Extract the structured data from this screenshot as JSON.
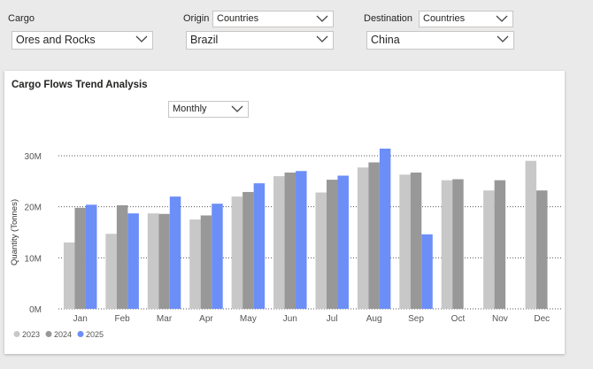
{
  "filters": {
    "cargo": {
      "label": "Cargo",
      "value": "Ores and Rocks"
    },
    "origin": {
      "label": "Origin",
      "scope": "Countries",
      "value": "Brazil"
    },
    "destination": {
      "label": "Destination",
      "scope": "Countries",
      "value": "China"
    }
  },
  "card": {
    "granularity": "Monthly"
  },
  "colors": {
    "2023": "#c8c8c8",
    "2024": "#989898",
    "2025": "#6c8ef7"
  },
  "chart_data": {
    "type": "bar",
    "title": "Cargo Flows Trend Analysis",
    "xlabel": "",
    "ylabel": "Quantity (Tonnes)",
    "ylim": [
      0,
      30000000
    ],
    "yticks": [
      {
        "value": 0,
        "label": "0M"
      },
      {
        "value": 10000000,
        "label": "10M"
      },
      {
        "value": 20000000,
        "label": "20M"
      },
      {
        "value": 30000000,
        "label": "30M"
      }
    ],
    "grid": true,
    "legend": "bottom-left",
    "categories": [
      "Jan",
      "Feb",
      "Mar",
      "Apr",
      "May",
      "Jun",
      "Jul",
      "Aug",
      "Sep",
      "Oct",
      "Nov",
      "Dec"
    ],
    "series": [
      {
        "name": "2023",
        "values": [
          13000000,
          14700000,
          18700000,
          17500000,
          22000000,
          26000000,
          22800000,
          27700000,
          26300000,
          25200000,
          23200000,
          29000000
        ]
      },
      {
        "name": "2024",
        "values": [
          19800000,
          20300000,
          18600000,
          18300000,
          22900000,
          26700000,
          25300000,
          28700000,
          26700000,
          25400000,
          25200000,
          23200000
        ]
      },
      {
        "name": "2025",
        "values": [
          20400000,
          18700000,
          22000000,
          20600000,
          24600000,
          27000000,
          26100000,
          31400000,
          14600000,
          null,
          null,
          null
        ]
      }
    ]
  }
}
